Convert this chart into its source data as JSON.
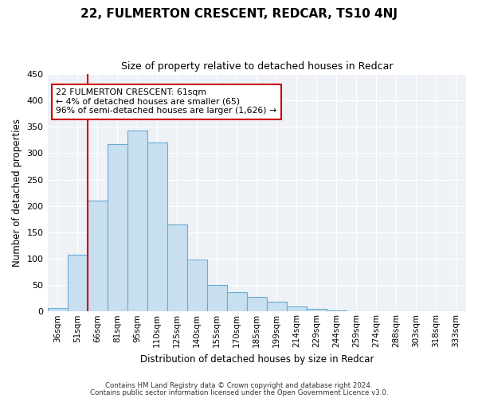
{
  "title": "22, FULMERTON CRESCENT, REDCAR, TS10 4NJ",
  "subtitle": "Size of property relative to detached houses in Redcar",
  "xlabel": "Distribution of detached houses by size in Redcar",
  "ylabel": "Number of detached properties",
  "categories": [
    "36sqm",
    "51sqm",
    "66sqm",
    "81sqm",
    "95sqm",
    "110sqm",
    "125sqm",
    "140sqm",
    "155sqm",
    "170sqm",
    "185sqm",
    "199sqm",
    "214sqm",
    "229sqm",
    "244sqm",
    "259sqm",
    "274sqm",
    "288sqm",
    "303sqm",
    "318sqm",
    "333sqm"
  ],
  "bar_values": [
    7,
    107,
    210,
    317,
    343,
    320,
    165,
    99,
    50,
    37,
    28,
    18,
    10,
    5,
    2,
    0,
    1,
    0,
    0,
    0,
    0
  ],
  "bar_color": "#c8dff0",
  "bar_edge_color": "#6aaad4",
  "highlight_color": "#cc0000",
  "annotation_title": "22 FULMERTON CRESCENT: 61sqm",
  "annotation_line1": "← 4% of detached houses are smaller (65)",
  "annotation_line2": "96% of semi-detached houses are larger (1,626) →",
  "annotation_box_edge": "#cc0000",
  "ylim": [
    0,
    450
  ],
  "yticks": [
    0,
    50,
    100,
    150,
    200,
    250,
    300,
    350,
    400,
    450
  ],
  "footer1": "Contains HM Land Registry data © Crown copyright and database right 2024.",
  "footer2": "Contains public sector information licensed under the Open Government Licence v3.0.",
  "fig_width": 6.0,
  "fig_height": 5.0,
  "bg_color": "#eef2f7"
}
